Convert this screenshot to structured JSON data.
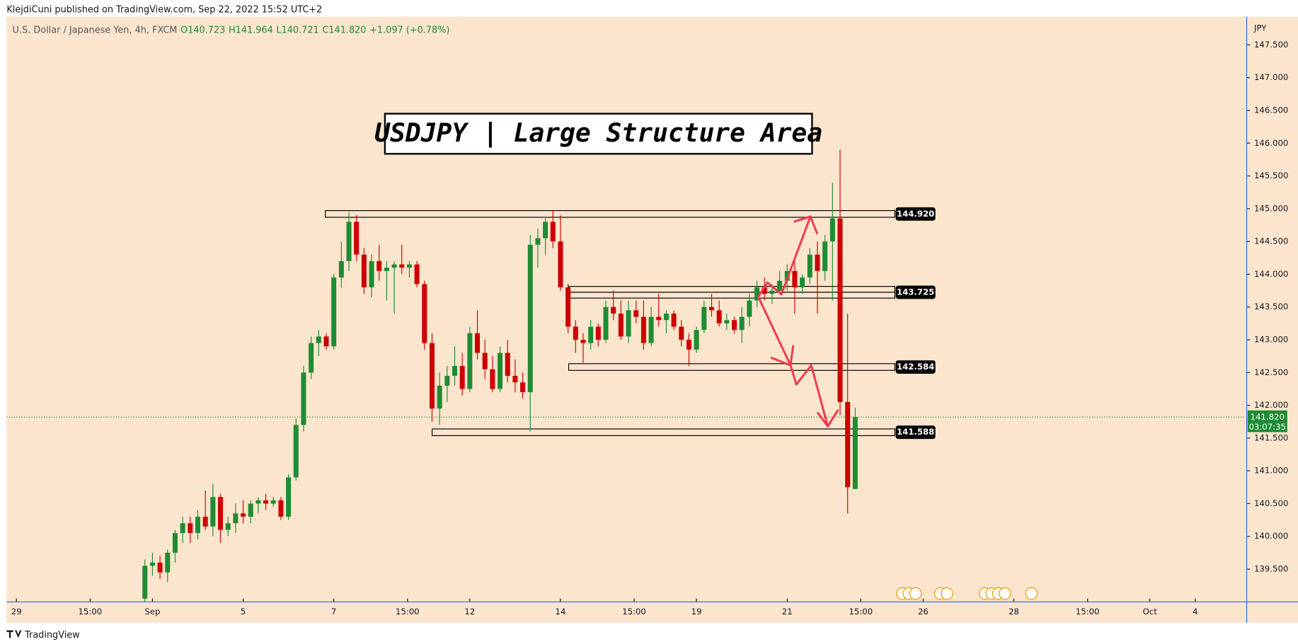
{
  "chart_data": {
    "type": "candlestick",
    "published": "KlejdiCuni published on TradingView.com, Sep 22, 2022 15:52 UTC+2",
    "subtitle": "U.S. Dollar / Japanese Yen, 4h, FXCM",
    "legend_values": [
      "O140.723",
      "H141.964",
      "L140.721",
      "C141.820",
      "+1.097 (+0.78%)"
    ],
    "title": "USDJPY | Large Structure Area",
    "axis_unit": "JPY",
    "brand": "TradingView",
    "up_color": "#1e8c32",
    "down_color": "#cc0000",
    "ylim": [
      139.0,
      147.93
    ],
    "yticks": [
      {
        "value": 139.5,
        "label": "139.500"
      },
      {
        "value": 140,
        "label": "140.000"
      },
      {
        "value": 140.5,
        "label": "140.500"
      },
      {
        "value": 141,
        "label": "141.000"
      },
      {
        "value": 141.5,
        "label": "141.500"
      },
      {
        "value": 142,
        "label": "142.000"
      },
      {
        "value": 142.5,
        "label": "142.500"
      },
      {
        "value": 143,
        "label": "143.000"
      },
      {
        "value": 143.5,
        "label": "143.500"
      },
      {
        "value": 144,
        "label": "144.000"
      },
      {
        "value": 144.5,
        "label": "144.500"
      },
      {
        "value": 145,
        "label": "145.000"
      },
      {
        "value": 145.5,
        "label": "145.500"
      },
      {
        "value": 146,
        "label": "146.000"
      },
      {
        "value": 146.5,
        "label": "146.500"
      },
      {
        "value": 147,
        "label": "147.000"
      },
      {
        "value": 147.5,
        "label": "147.500"
      }
    ],
    "xlim": [
      -18.3,
      145.7
    ],
    "xticks": [
      {
        "value": -17,
        "label": "29"
      },
      {
        "value": -7.25,
        "label": "15:00"
      },
      {
        "value": 1,
        "label": "Sep"
      },
      {
        "value": 13,
        "label": "5"
      },
      {
        "value": 25,
        "label": "7"
      },
      {
        "value": 34.75,
        "label": "15:00"
      },
      {
        "value": 43,
        "label": "12"
      },
      {
        "value": 55,
        "label": "14"
      },
      {
        "value": 64.75,
        "label": "15:00"
      },
      {
        "value": 73,
        "label": "19"
      },
      {
        "value": 85,
        "label": "21"
      },
      {
        "value": 94.75,
        "label": "15:00"
      },
      {
        "value": 103,
        "label": "26"
      },
      {
        "value": 115,
        "label": "28"
      },
      {
        "value": 124.75,
        "label": "15:00"
      },
      {
        "value": 133,
        "label": "Oct"
      },
      {
        "value": 139,
        "label": "4"
      }
    ],
    "candles": [
      [
        139.05,
        139.65,
        139.0,
        139.55
      ],
      [
        139.55,
        139.75,
        139.4,
        139.6
      ],
      [
        139.6,
        139.7,
        139.35,
        139.45
      ],
      [
        139.45,
        139.8,
        139.3,
        139.75
      ],
      [
        139.75,
        140.1,
        139.6,
        140.05
      ],
      [
        140.05,
        140.3,
        139.9,
        140.2
      ],
      [
        140.2,
        140.3,
        139.9,
        140.05
      ],
      [
        140.05,
        140.4,
        139.95,
        140.3
      ],
      [
        140.3,
        140.7,
        140.1,
        140.15
      ],
      [
        140.15,
        140.8,
        140.0,
        140.6
      ],
      [
        140.6,
        140.65,
        139.9,
        140.1
      ],
      [
        140.1,
        140.3,
        140.0,
        140.2
      ],
      [
        140.2,
        140.5,
        140.05,
        140.35
      ],
      [
        140.35,
        140.55,
        140.2,
        140.3
      ],
      [
        140.3,
        140.55,
        140.2,
        140.5
      ],
      [
        140.5,
        140.6,
        140.35,
        140.55
      ],
      [
        140.55,
        140.65,
        140.4,
        140.5
      ],
      [
        140.5,
        140.6,
        140.45,
        140.55
      ],
      [
        140.55,
        140.6,
        140.25,
        140.3
      ],
      [
        140.3,
        140.95,
        140.25,
        140.9
      ],
      [
        140.9,
        141.8,
        140.85,
        141.7
      ],
      [
        141.7,
        142.6,
        141.6,
        142.5
      ],
      [
        142.5,
        143.05,
        142.4,
        142.95
      ],
      [
        142.95,
        143.15,
        142.75,
        143.05
      ],
      [
        143.05,
        143.1,
        142.85,
        142.9
      ],
      [
        142.9,
        144.0,
        142.85,
        143.95
      ],
      [
        143.95,
        144.5,
        143.8,
        144.2
      ],
      [
        144.2,
        144.95,
        144.05,
        144.8
      ],
      [
        144.8,
        144.9,
        144.2,
        144.3
      ],
      [
        144.3,
        144.4,
        143.7,
        143.8
      ],
      [
        143.8,
        144.3,
        143.65,
        144.2
      ],
      [
        144.2,
        144.45,
        143.9,
        144.05
      ],
      [
        144.05,
        144.2,
        143.6,
        144.1
      ],
      [
        144.1,
        144.2,
        143.4,
        144.15
      ],
      [
        144.15,
        144.45,
        144.0,
        144.1
      ],
      [
        144.1,
        144.2,
        143.95,
        144.15
      ],
      [
        144.15,
        144.2,
        143.8,
        143.85
      ],
      [
        143.85,
        143.9,
        142.85,
        142.95
      ],
      [
        142.95,
        143.1,
        141.75,
        141.95
      ],
      [
        141.95,
        142.5,
        141.7,
        142.3
      ],
      [
        142.3,
        142.6,
        142.05,
        142.45
      ],
      [
        142.45,
        142.9,
        142.3,
        142.6
      ],
      [
        142.6,
        142.8,
        142.15,
        142.25
      ],
      [
        142.25,
        143.2,
        142.2,
        143.1
      ],
      [
        143.1,
        143.45,
        142.7,
        142.8
      ],
      [
        142.8,
        143.0,
        142.4,
        142.55
      ],
      [
        142.55,
        142.75,
        142.2,
        142.25
      ],
      [
        142.25,
        142.9,
        142.2,
        142.8
      ],
      [
        142.8,
        143.0,
        142.35,
        142.45
      ],
      [
        142.45,
        142.7,
        142.2,
        142.35
      ],
      [
        142.35,
        142.5,
        142.1,
        142.2
      ],
      [
        142.2,
        144.6,
        141.6,
        144.45
      ],
      [
        144.45,
        144.7,
        144.1,
        144.55
      ],
      [
        144.55,
        144.85,
        144.3,
        144.8
      ],
      [
        144.8,
        144.98,
        144.4,
        144.5
      ],
      [
        144.5,
        144.9,
        143.75,
        143.8
      ],
      [
        143.8,
        143.85,
        143.1,
        143.2
      ],
      [
        143.2,
        143.3,
        142.8,
        143.0
      ],
      [
        143.0,
        143.1,
        142.65,
        142.95
      ],
      [
        142.95,
        143.3,
        142.85,
        143.2
      ],
      [
        143.2,
        143.25,
        142.9,
        143.0
      ],
      [
        143.0,
        143.6,
        142.95,
        143.5
      ],
      [
        143.5,
        143.75,
        143.3,
        143.4
      ],
      [
        143.4,
        143.6,
        143.0,
        143.05
      ],
      [
        143.05,
        143.6,
        142.95,
        143.45
      ],
      [
        143.45,
        143.6,
        143.25,
        143.35
      ],
      [
        143.35,
        143.6,
        142.85,
        142.95
      ],
      [
        142.95,
        143.5,
        142.9,
        143.35
      ],
      [
        143.35,
        143.7,
        143.2,
        143.3
      ],
      [
        143.3,
        143.45,
        143.1,
        143.4
      ],
      [
        143.4,
        143.45,
        143.15,
        143.2
      ],
      [
        143.2,
        143.3,
        142.9,
        143.0
      ],
      [
        143.0,
        143.1,
        142.6,
        142.85
      ],
      [
        142.85,
        143.2,
        142.8,
        143.15
      ],
      [
        143.15,
        143.6,
        143.1,
        143.5
      ],
      [
        143.5,
        143.7,
        143.35,
        143.45
      ],
      [
        143.45,
        143.6,
        143.2,
        143.25
      ],
      [
        143.25,
        143.4,
        143.15,
        143.3
      ],
      [
        143.3,
        143.35,
        143.1,
        143.15
      ],
      [
        143.15,
        143.5,
        142.95,
        143.35
      ],
      [
        143.35,
        143.7,
        143.2,
        143.6
      ],
      [
        143.6,
        143.9,
        143.5,
        143.8
      ],
      [
        143.8,
        143.95,
        143.6,
        143.7
      ],
      [
        143.7,
        143.85,
        143.55,
        143.75
      ],
      [
        143.75,
        144.05,
        143.7,
        143.9
      ],
      [
        143.9,
        144.15,
        143.75,
        144.05
      ],
      [
        144.05,
        144.2,
        143.4,
        143.8
      ],
      [
        143.8,
        144.0,
        143.7,
        143.95
      ],
      [
        143.95,
        144.4,
        143.85,
        144.3
      ],
      [
        144.3,
        144.5,
        143.4,
        144.05
      ],
      [
        144.05,
        144.6,
        143.9,
        144.5
      ],
      [
        144.5,
        145.4,
        143.6,
        144.85
      ],
      [
        144.85,
        145.9,
        141.85,
        142.05
      ],
      [
        142.05,
        143.4,
        140.35,
        140.75
      ],
      [
        140.723,
        141.964,
        140.721,
        141.82
      ]
    ],
    "levels": [
      {
        "value": 144.92,
        "label": "144.920"
      },
      {
        "value": 143.725,
        "label": "143.725"
      },
      {
        "value": 142.584,
        "label": "142.584"
      },
      {
        "value": 141.588,
        "label": "141.588"
      }
    ],
    "last_price": {
      "value": 141.82,
      "label": "141.820"
    },
    "countdown": "03:07:35"
  }
}
